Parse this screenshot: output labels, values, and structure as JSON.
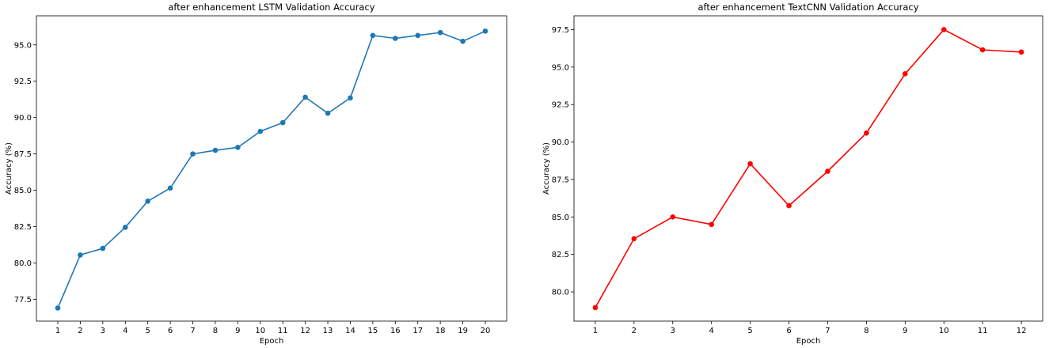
{
  "chart_data": [
    {
      "type": "line",
      "title": "after enhancement LSTM Validation Accuracy",
      "xlabel": "Epoch",
      "ylabel": "Accuracy (%)",
      "x": [
        1,
        2,
        3,
        4,
        5,
        6,
        7,
        8,
        9,
        10,
        11,
        12,
        13,
        14,
        15,
        16,
        17,
        18,
        19,
        20
      ],
      "xticks": [
        "1",
        "2",
        "3",
        "4",
        "5",
        "6",
        "7",
        "8",
        "9",
        "10",
        "11",
        "12",
        "13",
        "14",
        "15",
        "16",
        "17",
        "18",
        "19",
        "20"
      ],
      "yticks": [
        77.5,
        80.0,
        82.5,
        85.0,
        87.5,
        90.0,
        92.5,
        95.0
      ],
      "ytick_labels": [
        "77.5",
        "80.0",
        "82.5",
        "85.0",
        "87.5",
        "90.0",
        "92.5",
        "95.0"
      ],
      "xlim": [
        0.05,
        20.95
      ],
      "ylim": [
        76.0,
        97.0
      ],
      "grid": false,
      "series": [
        {
          "color": "#1f77b4",
          "marker": "circle",
          "values": [
            76.9,
            80.55,
            81.0,
            82.45,
            84.25,
            85.15,
            87.5,
            87.75,
            87.95,
            89.05,
            89.65,
            91.4,
            90.3,
            91.35,
            95.65,
            95.45,
            95.65,
            95.85,
            95.25,
            95.95
          ]
        }
      ]
    },
    {
      "type": "line",
      "title": "after enhancement TextCNN Validation Accuracy",
      "xlabel": "Epoch",
      "ylabel": "Accuracy (%)",
      "x": [
        1,
        2,
        3,
        4,
        5,
        6,
        7,
        8,
        9,
        10,
        11,
        12
      ],
      "xticks": [
        "1",
        "2",
        "3",
        "4",
        "5",
        "6",
        "7",
        "8",
        "9",
        "10",
        "11",
        "12"
      ],
      "yticks": [
        80.0,
        82.5,
        85.0,
        87.5,
        90.0,
        92.5,
        95.0,
        97.5
      ],
      "ytick_labels": [
        "80.0",
        "82.5",
        "85.0",
        "87.5",
        "90.0",
        "92.5",
        "95.0",
        "97.5"
      ],
      "xlim": [
        0.45,
        12.55
      ],
      "ylim": [
        78.05,
        98.42
      ],
      "grid": false,
      "series": [
        {
          "color": "#ff0000",
          "marker": "circle",
          "values": [
            78.95,
            83.55,
            85.0,
            84.5,
            88.55,
            85.75,
            88.05,
            90.6,
            94.55,
            97.5,
            96.15,
            96.0
          ]
        }
      ]
    }
  ]
}
